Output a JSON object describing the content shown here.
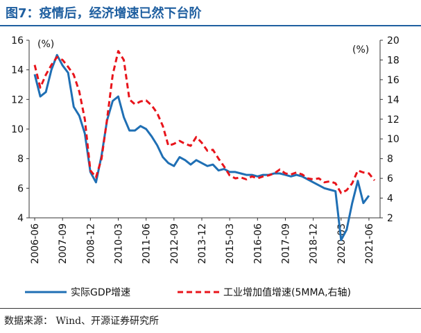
{
  "figure": {
    "title": "图7：疫情后，经济增速已然下台阶",
    "source": "数据来源：  Wind、开源证券研究所"
  },
  "chart_data": {
    "type": "line",
    "title": "图7：疫情后，经济增速已然下台阶",
    "x_tick_labels": [
      "2006-06",
      "2007-09",
      "2008-12",
      "2010-03",
      "2011-06",
      "2012-09",
      "2013-12",
      "2015-03",
      "2016-06",
      "2017-09",
      "2018-12",
      "2020-03",
      "2021-06"
    ],
    "left_axis": {
      "unit": "(%)",
      "ylim": [
        4,
        16
      ],
      "ticks": [
        4,
        6,
        8,
        10,
        12,
        14,
        16
      ]
    },
    "right_axis": {
      "unit": "(%)",
      "ylim": [
        2,
        20
      ],
      "ticks": [
        2,
        4,
        6,
        8,
        10,
        12,
        14,
        16,
        18,
        20
      ]
    },
    "grid": false,
    "legend_position": "bottom",
    "series": [
      {
        "name": "实际GDP增速",
        "axis": "left",
        "style": "solid",
        "color": "#1f6fb4",
        "points": [
          [
            2006.25,
            13.7
          ],
          [
            2006.5,
            12.2
          ],
          [
            2006.75,
            12.5
          ],
          [
            2007.0,
            14.0
          ],
          [
            2007.25,
            15.0
          ],
          [
            2007.5,
            14.3
          ],
          [
            2007.75,
            13.8
          ],
          [
            2008.0,
            11.5
          ],
          [
            2008.25,
            10.9
          ],
          [
            2008.5,
            9.7
          ],
          [
            2008.75,
            7.1
          ],
          [
            2009.0,
            6.4
          ],
          [
            2009.25,
            8.2
          ],
          [
            2009.5,
            10.6
          ],
          [
            2009.75,
            11.9
          ],
          [
            2010.0,
            12.2
          ],
          [
            2010.25,
            10.8
          ],
          [
            2010.5,
            9.9
          ],
          [
            2010.75,
            9.9
          ],
          [
            2011.0,
            10.2
          ],
          [
            2011.25,
            10.0
          ],
          [
            2011.5,
            9.5
          ],
          [
            2011.75,
            8.9
          ],
          [
            2012.0,
            8.1
          ],
          [
            2012.25,
            7.7
          ],
          [
            2012.5,
            7.5
          ],
          [
            2012.75,
            8.1
          ],
          [
            2013.0,
            7.9
          ],
          [
            2013.25,
            7.6
          ],
          [
            2013.5,
            7.9
          ],
          [
            2013.75,
            7.7
          ],
          [
            2014.0,
            7.5
          ],
          [
            2014.25,
            7.6
          ],
          [
            2014.5,
            7.2
          ],
          [
            2014.75,
            7.3
          ],
          [
            2015.0,
            7.1
          ],
          [
            2015.25,
            7.1
          ],
          [
            2015.5,
            7.0
          ],
          [
            2015.75,
            6.9
          ],
          [
            2016.0,
            6.9
          ],
          [
            2016.25,
            6.8
          ],
          [
            2016.5,
            6.9
          ],
          [
            2016.75,
            6.9
          ],
          [
            2017.0,
            7.0
          ],
          [
            2017.25,
            7.0
          ],
          [
            2017.5,
            6.9
          ],
          [
            2017.75,
            6.8
          ],
          [
            2018.0,
            6.9
          ],
          [
            2018.25,
            6.8
          ],
          [
            2018.5,
            6.6
          ],
          [
            2018.75,
            6.4
          ],
          [
            2019.0,
            6.2
          ],
          [
            2019.25,
            6.0
          ],
          [
            2019.5,
            5.9
          ],
          [
            2019.75,
            5.8
          ],
          [
            2020.0,
            2.5
          ],
          [
            2020.25,
            3.2
          ],
          [
            2020.5,
            5.0
          ],
          [
            2020.75,
            6.5
          ],
          [
            2021.0,
            5.0
          ],
          [
            2021.25,
            5.5
          ]
        ]
      },
      {
        "name": "工业增加值增速(5MMA,右轴)",
        "axis": "right",
        "style": "dashed",
        "color": "#e8141b",
        "points": [
          [
            2006.25,
            17.5
          ],
          [
            2006.5,
            15.2
          ],
          [
            2006.75,
            16.5
          ],
          [
            2007.0,
            17.5
          ],
          [
            2007.25,
            18.3
          ],
          [
            2007.5,
            18.0
          ],
          [
            2007.75,
            17.3
          ],
          [
            2008.0,
            16.5
          ],
          [
            2008.25,
            14.8
          ],
          [
            2008.5,
            12.0
          ],
          [
            2008.75,
            6.8
          ],
          [
            2009.0,
            6.1
          ],
          [
            2009.25,
            8.0
          ],
          [
            2009.5,
            12.0
          ],
          [
            2009.75,
            16.5
          ],
          [
            2010.0,
            18.9
          ],
          [
            2010.25,
            18.0
          ],
          [
            2010.5,
            14.0
          ],
          [
            2010.75,
            13.5
          ],
          [
            2011.0,
            13.8
          ],
          [
            2011.25,
            13.9
          ],
          [
            2011.5,
            13.4
          ],
          [
            2011.75,
            12.6
          ],
          [
            2012.0,
            11.3
          ],
          [
            2012.25,
            9.3
          ],
          [
            2012.5,
            9.5
          ],
          [
            2012.75,
            9.8
          ],
          [
            2013.0,
            9.5
          ],
          [
            2013.25,
            9.3
          ],
          [
            2013.5,
            10.2
          ],
          [
            2013.75,
            9.6
          ],
          [
            2014.0,
            8.8
          ],
          [
            2014.25,
            8.9
          ],
          [
            2014.5,
            8.0
          ],
          [
            2014.75,
            7.2
          ],
          [
            2015.0,
            6.3
          ],
          [
            2015.25,
            6.0
          ],
          [
            2015.5,
            6.1
          ],
          [
            2015.75,
            5.9
          ],
          [
            2016.0,
            6.2
          ],
          [
            2016.25,
            6.0
          ],
          [
            2016.5,
            6.2
          ],
          [
            2016.75,
            6.3
          ],
          [
            2017.0,
            6.5
          ],
          [
            2017.25,
            6.9
          ],
          [
            2017.5,
            6.5
          ],
          [
            2017.75,
            6.4
          ],
          [
            2018.0,
            6.6
          ],
          [
            2018.25,
            6.4
          ],
          [
            2018.5,
            6.0
          ],
          [
            2018.75,
            5.9
          ],
          [
            2019.0,
            6.0
          ],
          [
            2019.25,
            5.6
          ],
          [
            2019.5,
            5.7
          ],
          [
            2019.75,
            5.5
          ],
          [
            2020.0,
            4.5
          ],
          [
            2020.25,
            4.8
          ],
          [
            2020.5,
            5.5
          ],
          [
            2020.75,
            6.8
          ],
          [
            2021.0,
            6.6
          ],
          [
            2021.25,
            6.5
          ],
          [
            2021.5,
            5.8
          ]
        ]
      }
    ],
    "annotations": []
  }
}
